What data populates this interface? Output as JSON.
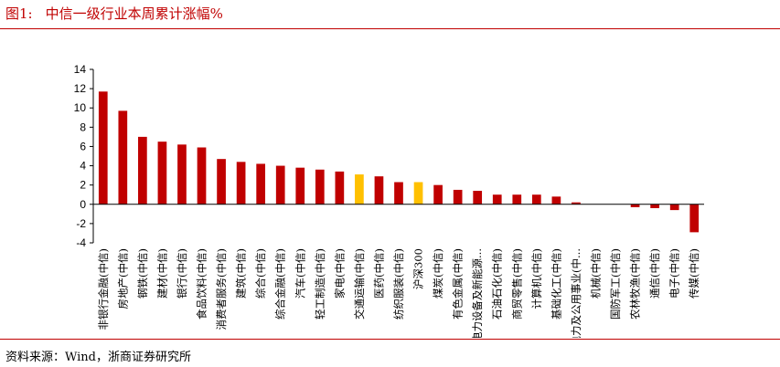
{
  "title": {
    "number": "图1:",
    "text": "中信一级行业本周累计涨幅%"
  },
  "source": "资料来源：Wind，浙商证券研究所",
  "colors": {
    "bar": "#c00000",
    "highlight": "#ffc000",
    "rule": "#c00000"
  },
  "chart_data": {
    "type": "bar",
    "title": "中信一级行业本周累计涨幅%",
    "xlabel": "",
    "ylabel": "",
    "ylim": [
      -4,
      14
    ],
    "yticks": [
      14,
      12,
      10,
      8,
      6,
      4,
      2,
      0,
      -2,
      -4
    ],
    "grid": false,
    "legend": "none",
    "categories": [
      "非银行金融(中信)",
      "房地产(中信)",
      "钢铁(中信)",
      "建材(中信)",
      "银行(中信)",
      "食品饮料(中信)",
      "消费者服务(中信)",
      "建筑(中信)",
      "综合(中信)",
      "综合金融(中信)",
      "汽车(中信)",
      "轻工制造(中信)",
      "家电(中信)",
      "交通运输(中信)",
      "医药(中信)",
      "纺织服装(中信)",
      "沪深300",
      "煤炭(中信)",
      "有色金属(中信)",
      "电力设备及新能源...",
      "石油石化(中信)",
      "商贸零售(中信)",
      "计算机(中信)",
      "基础化工(中信)",
      "电力及公用事业(中...",
      "机械(中信)",
      "国防军工(中信)",
      "农林牧渔(中信)",
      "通信(中信)",
      "电子(中信)",
      "传媒(中信)"
    ],
    "values": [
      11.7,
      9.7,
      7.0,
      6.5,
      6.2,
      5.9,
      4.7,
      4.4,
      4.2,
      4.0,
      3.8,
      3.6,
      3.4,
      3.1,
      2.9,
      2.3,
      2.3,
      2.0,
      1.5,
      1.4,
      1.0,
      1.0,
      1.0,
      0.8,
      0.2,
      0.0,
      0.0,
      -0.3,
      -0.4,
      -0.6,
      -2.9
    ],
    "highlighted": [
      "交通运输(中信)",
      "沪深300"
    ]
  }
}
